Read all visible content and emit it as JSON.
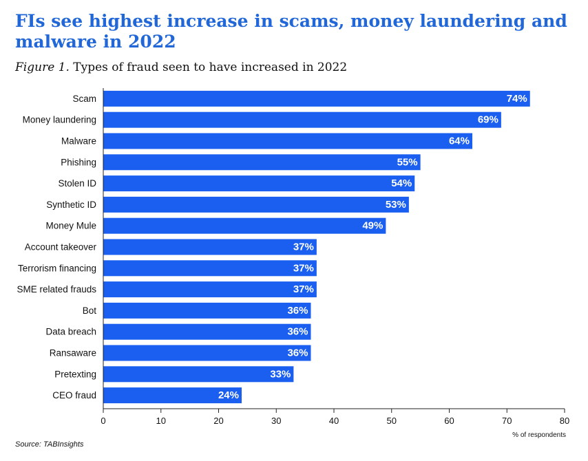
{
  "chart_data": {
    "type": "bar",
    "orientation": "horizontal",
    "title": "FIs see highest increase in scams, money laundering and malware in 2022",
    "figure_label": "Figure 1.",
    "subtitle": "Types of fraud seen to have increased in 2022",
    "categories": [
      "Scam",
      "Money laundering",
      "Malware",
      "Phishing",
      "Stolen ID",
      "Synthetic ID",
      "Money Mule",
      "Account takeover",
      "Terrorism financing",
      "SME related frauds",
      "Bot",
      "Data breach",
      "Ransaware",
      "Pretexting",
      "CEO fraud"
    ],
    "values": [
      74,
      69,
      64,
      55,
      54,
      53,
      49,
      37,
      37,
      37,
      36,
      36,
      36,
      33,
      24
    ],
    "value_labels": [
      "74%",
      "69%",
      "64%",
      "55%",
      "54%",
      "53%",
      "49%",
      "37%",
      "37%",
      "37%",
      "36%",
      "36%",
      "36%",
      "33%",
      "24%"
    ],
    "xlabel": "% of respondents",
    "ylabel": "",
    "xlim": [
      0,
      80
    ],
    "xticks": [
      "0",
      "10",
      "20",
      "30",
      "40",
      "50",
      "60",
      "70",
      "80"
    ],
    "grid": false,
    "bar_color": "#1a5ff0",
    "title_color": "#2167d8",
    "source": "Source: TABInsights"
  }
}
